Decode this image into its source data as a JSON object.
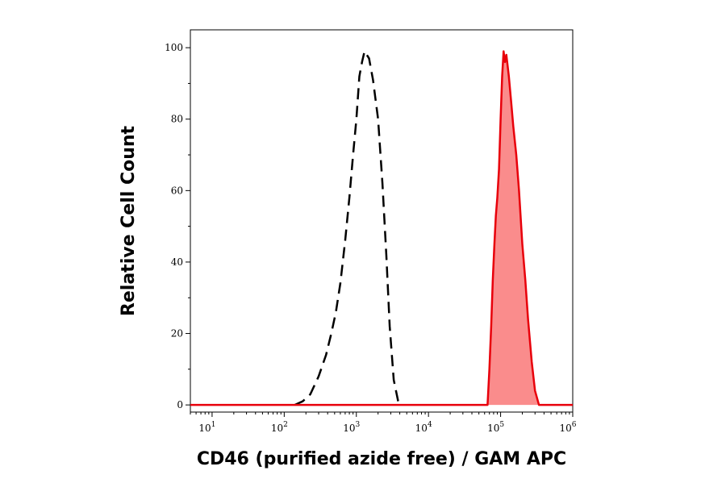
{
  "chart_data": {
    "type": "area",
    "title": "",
    "xlabel": "CD46 (purified azide free) / GAM APC",
    "ylabel": "Relative Cell Count",
    "x_scale": "log",
    "xlim": [
      5,
      1000000
    ],
    "ylim": [
      -2,
      105
    ],
    "x_ticks": [
      {
        "value": 10,
        "base": "10",
        "exp": "1"
      },
      {
        "value": 100,
        "base": "10",
        "exp": "2"
      },
      {
        "value": 1000,
        "base": "10",
        "exp": "3"
      },
      {
        "value": 10000,
        "base": "10",
        "exp": "4"
      },
      {
        "value": 100000,
        "base": "10",
        "exp": "5"
      },
      {
        "value": 1000000,
        "base": "10",
        "exp": "6"
      }
    ],
    "y_ticks": [
      0,
      20,
      40,
      60,
      80,
      100
    ],
    "y_tick_labels": [
      "0",
      "20",
      "40",
      "60",
      "80",
      "100"
    ],
    "grid": false,
    "colors": {
      "control": "#000000",
      "stained_line": "#e8000b",
      "stained_fill": "#fa8c8c"
    },
    "series": [
      {
        "style": "dashed",
        "x": [
          140,
          180,
          230,
          300,
          380,
          450,
          520,
          600,
          700,
          800,
          900,
          1000,
          1100,
          1200,
          1300,
          1500,
          1700,
          2000,
          2300,
          2600,
          2900,
          3300,
          3800,
          4500
        ],
        "y": [
          0,
          1,
          3,
          8,
          14,
          20,
          26,
          34,
          46,
          58,
          70,
          80,
          92,
          96,
          99,
          97,
          91,
          80,
          62,
          42,
          22,
          7,
          1,
          0
        ]
      },
      {
        "style": "filled",
        "x": [
          3,
          66000,
          70000,
          74000,
          78000,
          82000,
          86000,
          90000,
          95000,
          100000,
          105000,
          110000,
          115000,
          120000,
          130000,
          140000,
          150000,
          165000,
          180000,
          200000,
          220000,
          240000,
          270000,
          300000,
          340000,
          1000000
        ],
        "y": [
          0,
          0,
          10,
          22,
          35,
          45,
          53,
          58,
          66,
          80,
          92,
          99,
          96,
          98,
          92,
          85,
          78,
          70,
          60,
          45,
          35,
          24,
          12,
          4,
          0,
          0
        ]
      }
    ]
  }
}
